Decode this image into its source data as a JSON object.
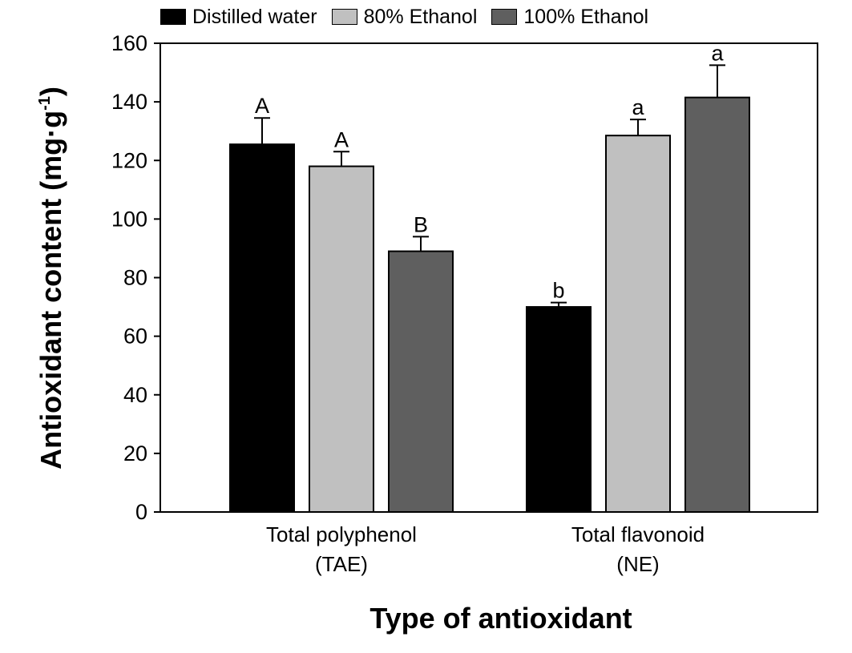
{
  "chart_data": {
    "type": "bar",
    "xlabel": "Type of antioxidant",
    "ylabel": "Antioxidant content (mg·g",
    "ylabel_sup": "-1",
    "ylabel_close": ")",
    "ylim": [
      0,
      160
    ],
    "yticks": [
      "0",
      "20",
      "40",
      "60",
      "80",
      "100",
      "120",
      "140",
      "160"
    ],
    "categories": [
      {
        "line1": "Total polyphenol",
        "line2": "(TAE)"
      },
      {
        "line1": "Total flavonoid",
        "line2": "(NE)"
      }
    ],
    "series": [
      {
        "name": "Distilled water",
        "color": "#000000",
        "values": [
          125.5,
          70.0
        ],
        "errors": [
          9.0,
          1.5
        ],
        "letters": [
          "A",
          "b"
        ]
      },
      {
        "name": "80% Ethanol",
        "color": "#c0c0c0",
        "values": [
          118.0,
          128.5
        ],
        "errors": [
          5.0,
          5.5
        ],
        "letters": [
          "A",
          "a"
        ]
      },
      {
        "name": "100% Ethanol",
        "color": "#5f5f5f",
        "values": [
          89.0,
          141.5
        ],
        "errors": [
          5.0,
          11.0
        ],
        "letters": [
          "B",
          "a"
        ]
      }
    ],
    "grid": false,
    "legend_position": "top"
  }
}
